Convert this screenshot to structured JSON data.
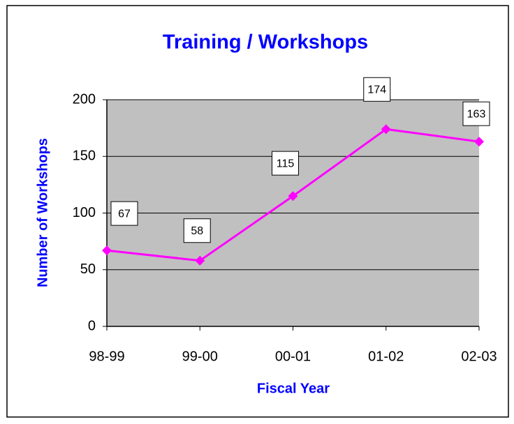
{
  "chart_data": {
    "type": "line",
    "title": "Training / Workshops",
    "x_label": "Fiscal Year",
    "y_label": "Number of Workshops",
    "categories": [
      "98-99",
      "99-00",
      "00-01",
      "01-02",
      "02-03"
    ],
    "series": [
      {
        "name": "Workshops",
        "color": "#ff00ff",
        "values": [
          67,
          58,
          115,
          174,
          163
        ]
      }
    ],
    "ylim": [
      0,
      200
    ],
    "yticks": [
      0,
      50,
      100,
      150,
      200
    ],
    "grid": true,
    "plot_background": "#c0c0c0",
    "title_color": "#0000ff"
  }
}
